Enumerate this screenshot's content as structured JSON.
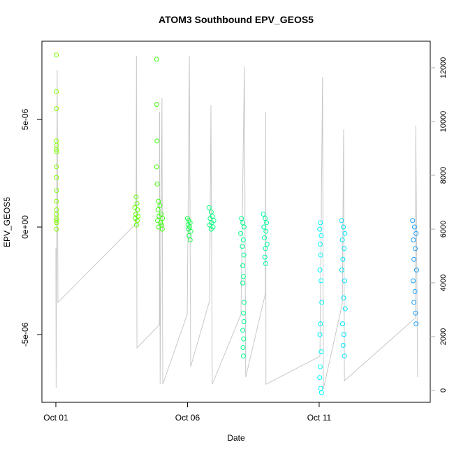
{
  "chart_data": {
    "type": "scatter",
    "title": "ATOM3 Southbound EPV_GEOS5",
    "xlabel": "Date",
    "ylabel": "EPV_GEOS5",
    "xlim": [
      -0.53,
      14.22
    ],
    "ylim": [
      -8.15e-06,
      8.64e-06
    ],
    "y2lim": [
      -442,
      12987
    ],
    "xticks": [
      {
        "value": 0,
        "label": "Oct 01"
      },
      {
        "value": 5,
        "label": "Oct 06"
      },
      {
        "value": 10,
        "label": "Oct 11"
      }
    ],
    "yticks": [
      {
        "value": -5e-06,
        "label": "-5e-06"
      },
      {
        "value": 0,
        "label": "0e+00"
      },
      {
        "value": 5e-06,
        "label": "5e-06"
      }
    ],
    "y2ticks": [
      0,
      2000,
      4000,
      6000,
      8000,
      10000,
      12000
    ],
    "series": [
      {
        "type": "line",
        "axis": "y2",
        "color": "#c8c8c8",
        "x": [
          0,
          0.01,
          0.05,
          0.08,
          3.05,
          3.06,
          3.08,
          3.93,
          3.94,
          3.96,
          4.03,
          4.06,
          4.99,
          5.07,
          5.12,
          5.84,
          5.89,
          5.94,
          7.03,
          7.16,
          7.21,
          7.96,
          7.97,
          7.98,
          10.03,
          10.13,
          10.16,
          10.88,
          10.93,
          10.96,
          13.66,
          13.67,
          13.74
        ],
        "values": [
          5300,
          100,
          11920,
          3270,
          6210,
          12440,
          1580,
          2440,
          10360,
          230,
          10880,
          230,
          2830,
          12440,
          880,
          3350,
          10620,
          230,
          2830,
          12050,
          490,
          3610,
          10360,
          230,
          1270,
          11660,
          50,
          3220,
          9710,
          360,
          2700,
          9840,
          490
        ]
      },
      {
        "color": "#80ff00",
        "x": [
          0.02,
          0.02,
          0.02,
          0.02,
          0.03,
          0.02,
          0.03,
          0.02,
          0.02,
          0.03,
          0.02,
          0.03,
          0.02,
          0.03,
          0.02,
          0.03,
          0.02
        ],
        "values": [
          8e-06,
          6.3e-06,
          5.5e-06,
          4e-06,
          3.8e-06,
          3.6e-06,
          3.5e-06,
          2.8e-06,
          2.3e-06,
          1.7e-06,
          1.2e-06,
          8e-07,
          6e-07,
          4e-07,
          3e-07,
          2e-07,
          -1e-07
        ]
      },
      {
        "color": "#5cff00",
        "x": [
          3.05,
          3.08,
          3.0,
          3.1,
          3.04,
          3.12,
          3.02,
          3.09,
          3.06
        ],
        "values": [
          1.4e-06,
          1.1e-06,
          9e-07,
          8e-07,
          6e-07,
          5e-07,
          4e-07,
          3e-07,
          1e-07
        ]
      },
      {
        "color": "#40ff10",
        "x": [
          3.83,
          3.83,
          3.84,
          3.83,
          3.85,
          3.9,
          3.95,
          3.88,
          4.0,
          3.92,
          4.05,
          3.86,
          3.98,
          4.02,
          3.9,
          4.04
        ],
        "values": [
          7.8e-06,
          5.7e-06,
          4e-06,
          2.8e-06,
          2e-06,
          1.2e-06,
          1e-06,
          8e-07,
          6e-07,
          5e-07,
          4e-07,
          3e-07,
          2e-07,
          1e-07,
          0.0,
          -1e-07
        ]
      },
      {
        "color": "#1aff50",
        "x": [
          5.0,
          5.05,
          5.1,
          5.02,
          5.08,
          5.04,
          5.12,
          5.06,
          5.1
        ],
        "values": [
          4e-07,
          3e-07,
          2e-07,
          1e-07,
          0.0,
          -1e-07,
          -2e-07,
          -4e-07,
          -6e-07
        ]
      },
      {
        "color": "#0aff80",
        "x": [
          5.82,
          5.9,
          5.95,
          5.86,
          6.0,
          5.92,
          5.84,
          5.97,
          5.9
        ],
        "values": [
          9e-07,
          7e-07,
          5e-07,
          4e-07,
          3e-07,
          2e-07,
          1e-07,
          0.0,
          -1e-07
        ]
      },
      {
        "color": "#00ff90",
        "x": [
          7.05,
          7.1,
          7.15,
          7.02,
          7.12,
          7.08,
          7.14,
          7.1,
          7.12,
          7.1,
          7.15,
          7.12,
          7.14,
          7.1,
          7.13,
          7.11,
          7.12
        ],
        "values": [
          4e-07,
          2e-07,
          0.0,
          -3e-07,
          -6e-07,
          -9e-07,
          -1.3e-06,
          -1.8e-06,
          -2.3e-06,
          -2.6e-06,
          -3.5e-06,
          -4e-06,
          -4.4e-06,
          -4.8e-06,
          -5.2e-06,
          -5.6e-06,
          -6e-06
        ]
      },
      {
        "color": "#00ffa0",
        "x": [
          7.88,
          7.95,
          8.0,
          7.9,
          7.98,
          7.92,
          8.02,
          7.96,
          7.94,
          7.97
        ],
        "values": [
          6e-07,
          4e-07,
          2e-07,
          0.0,
          -2e-07,
          -5e-07,
          -8e-07,
          -1e-06,
          -1.4e-06,
          -1.7e-06
        ]
      },
      {
        "color": "#00ffff",
        "x": [
          10.05,
          10.02,
          10.08,
          10.04,
          10.06,
          10.03,
          10.07,
          10.1,
          10.05,
          10.03,
          10.08,
          10.04,
          10.02,
          10.06,
          10.09
        ],
        "values": [
          2e-07,
          -1e-07,
          -4e-07,
          -8e-07,
          -1.3e-06,
          -2e-06,
          -2.5e-06,
          -3.5e-06,
          -4.5e-06,
          -5e-06,
          -5.8e-06,
          -6.5e-06,
          -7e-06,
          -7.5e-06,
          -7.7e-06
        ]
      },
      {
        "color": "#00e5ff",
        "x": [
          10.85,
          10.92,
          10.98,
          10.88,
          10.95,
          10.9,
          10.86,
          10.97,
          10.93,
          10.99,
          10.89,
          10.94,
          10.91,
          10.96
        ],
        "values": [
          3e-07,
          0.0,
          -3e-07,
          -6e-07,
          -1e-06,
          -1.5e-06,
          -2e-06,
          -2.5e-06,
          -3.3e-06,
          -3.8e-06,
          -4.5e-06,
          -5e-06,
          -5.5e-06,
          -6e-06
        ]
      },
      {
        "color": "#1a9fff",
        "x": [
          13.55,
          13.62,
          13.68,
          13.58,
          13.65,
          13.6,
          13.7,
          13.57,
          13.64,
          13.6,
          13.66,
          13.68
        ],
        "values": [
          3e-07,
          0.0,
          -3e-07,
          -6e-07,
          -1e-06,
          -1.5e-06,
          -2e-06,
          -2.5e-06,
          -3e-06,
          -3.5e-06,
          -4e-06,
          -4.5e-06
        ]
      }
    ]
  }
}
